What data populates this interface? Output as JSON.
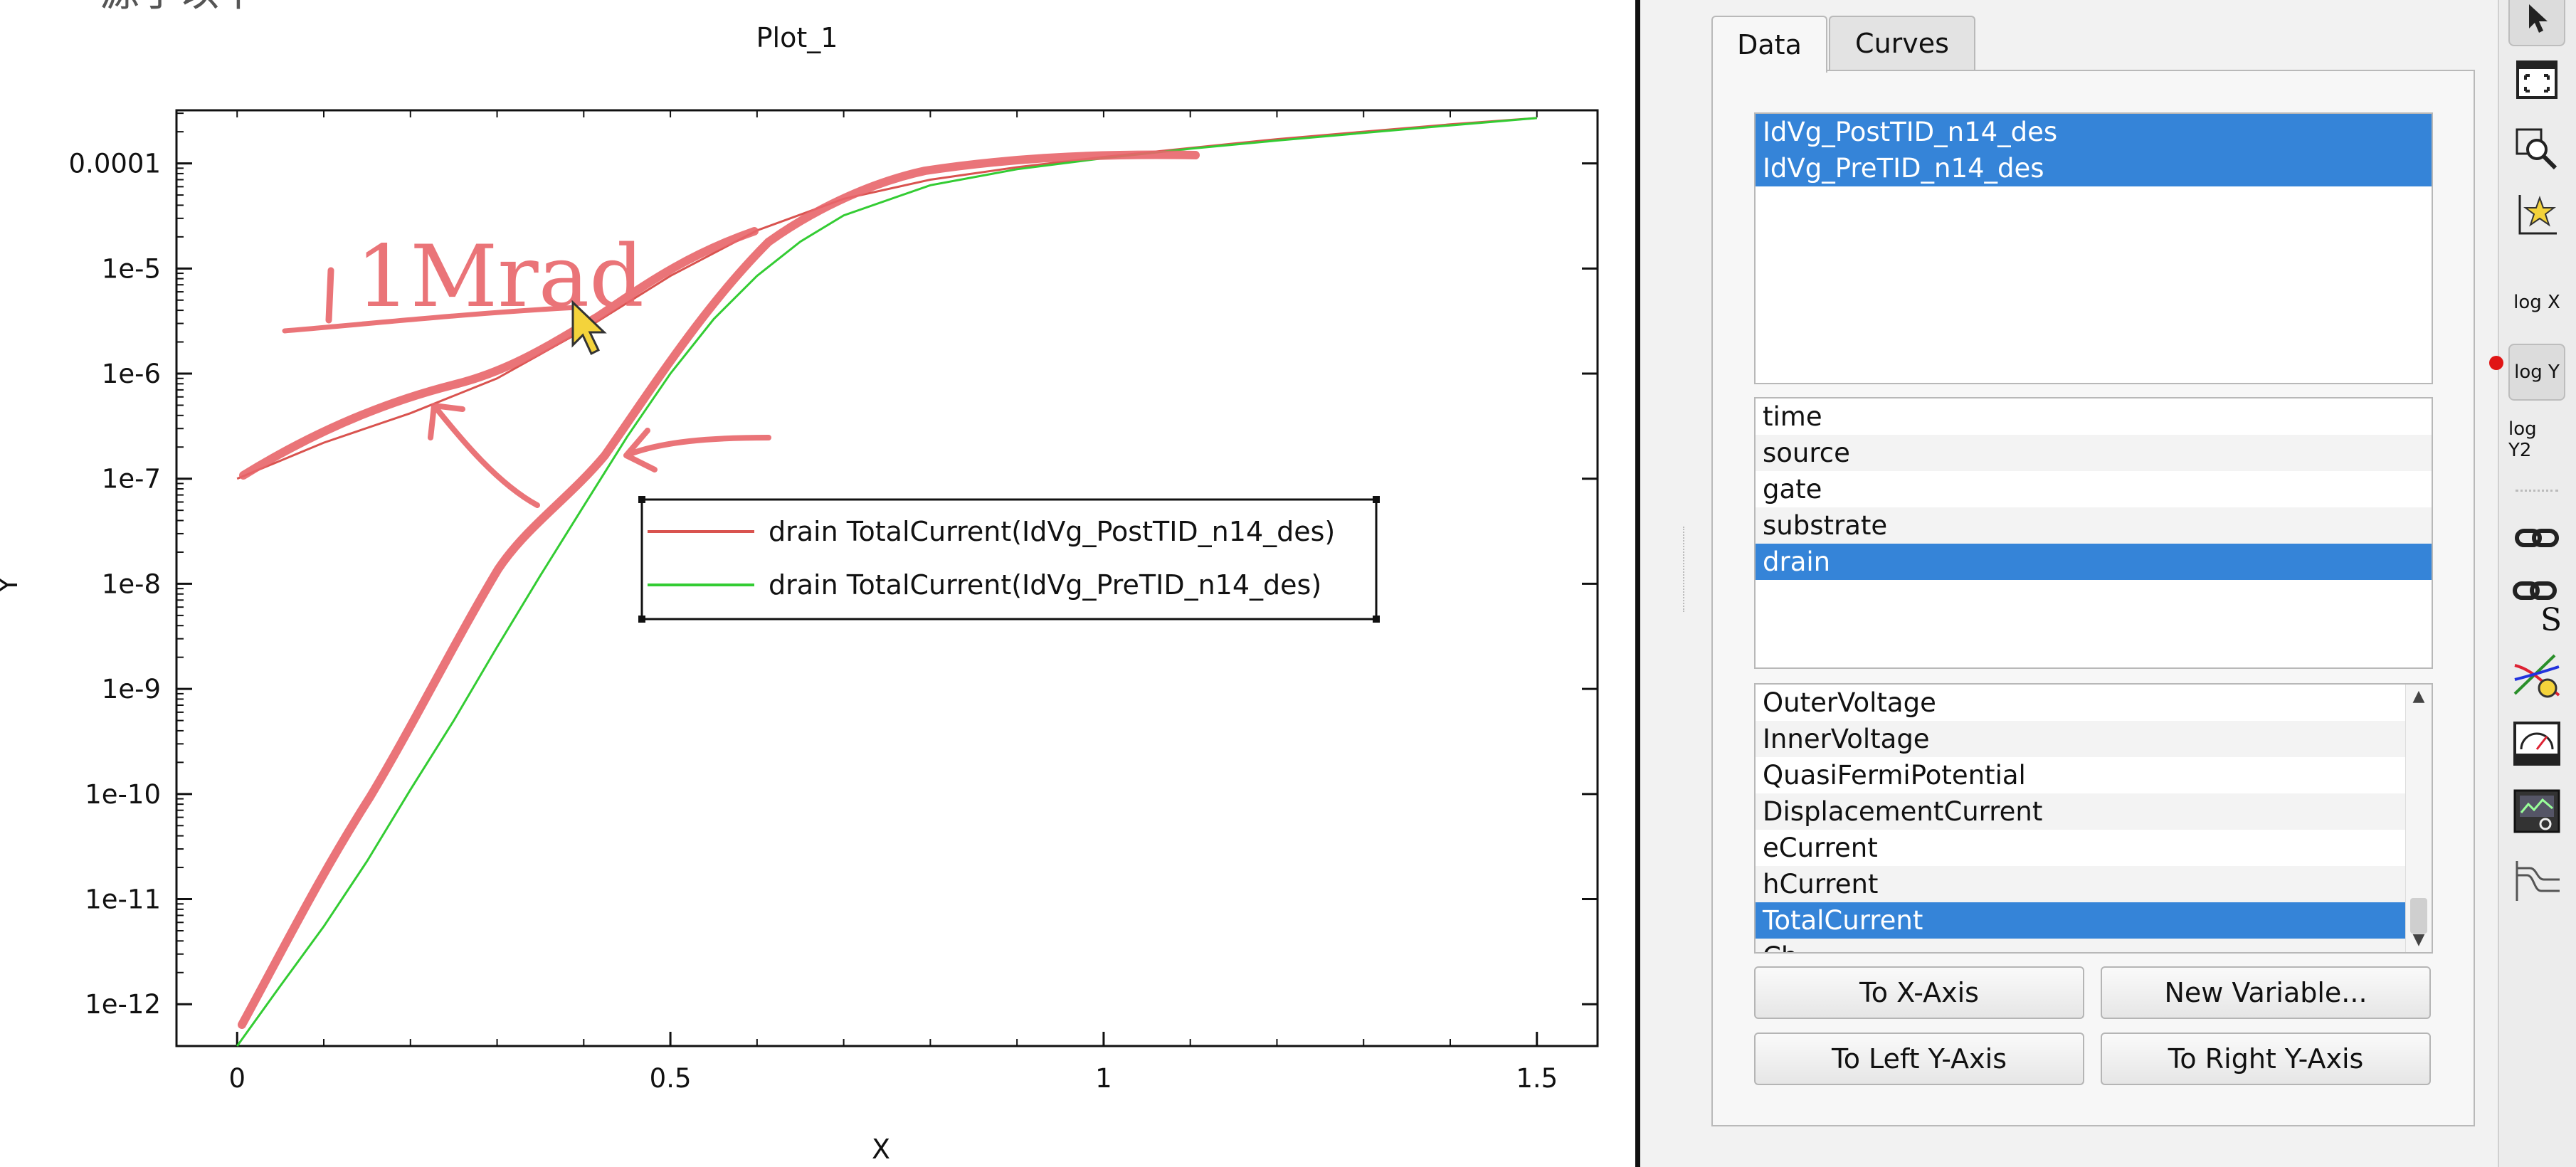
{
  "plot": {
    "title": "Plot_1",
    "xlabel": "X",
    "ylabel": "Y",
    "handwritten_note": "1Mrad",
    "top_text_fragment": "源于以下"
  },
  "chart_data": {
    "type": "line",
    "title": "Plot_1",
    "xlabel": "X",
    "ylabel": "Y",
    "yscale": "log",
    "xlim": [
      -0.07,
      1.57
    ],
    "ylim": [
      4e-13,
      0.00032
    ],
    "x_ticks": [
      "0",
      "0.5",
      "1",
      "1.5"
    ],
    "y_ticks": [
      "1e-12",
      "1e-11",
      "1e-10",
      "1e-9",
      "1e-8",
      "1e-7",
      "1e-6",
      "1e-5",
      "0.0001"
    ],
    "legend_position": "center",
    "grid": false,
    "series": [
      {
        "name": "drain TotalCurrent(IdVg_PostTID_n14_des)",
        "color": "#d9534f",
        "points": [
          [
            0.0,
            1e-07
          ],
          [
            0.1,
            2.2e-07
          ],
          [
            0.2,
            4.2e-07
          ],
          [
            0.3,
            9e-07
          ],
          [
            0.4,
            2.6e-06
          ],
          [
            0.5,
            8.5e-06
          ],
          [
            0.6,
            2.3e-05
          ],
          [
            0.7,
            4.6e-05
          ],
          [
            0.8,
            7e-05
          ],
          [
            0.9,
            9.2e-05
          ],
          [
            1.0,
            0.000115
          ],
          [
            1.1,
            0.00014
          ],
          [
            1.2,
            0.00017
          ],
          [
            1.3,
            0.0002
          ],
          [
            1.4,
            0.000235
          ],
          [
            1.5,
            0.00027
          ]
        ]
      },
      {
        "name": "drain TotalCurrent(IdVg_PreTID_n14_des)",
        "color": "#33cc33",
        "points": [
          [
            0.0,
            4e-13
          ],
          [
            0.05,
            1.5e-12
          ],
          [
            0.1,
            5.5e-12
          ],
          [
            0.15,
            2.3e-11
          ],
          [
            0.2,
            1.1e-10
          ],
          [
            0.25,
            5e-10
          ],
          [
            0.3,
            2.5e-09
          ],
          [
            0.35,
            1.2e-08
          ],
          [
            0.4,
            5.5e-08
          ],
          [
            0.45,
            2.5e-07
          ],
          [
            0.5,
            1e-06
          ],
          [
            0.55,
            3.3e-06
          ],
          [
            0.6,
            8.5e-06
          ],
          [
            0.65,
            1.8e-05
          ],
          [
            0.7,
            3.2e-05
          ],
          [
            0.8,
            6.2e-05
          ],
          [
            0.9,
            8.8e-05
          ],
          [
            1.0,
            0.000112
          ],
          [
            1.1,
            0.000138
          ],
          [
            1.2,
            0.000165
          ],
          [
            1.3,
            0.000195
          ],
          [
            1.4,
            0.00023
          ],
          [
            1.5,
            0.00027
          ]
        ]
      }
    ]
  },
  "panel": {
    "tabs": [
      {
        "label": "Data",
        "active": true
      },
      {
        "label": "Curves",
        "active": false
      }
    ],
    "datasets": [
      {
        "label": "IdVg_PostTID_n14_des",
        "selected": true
      },
      {
        "label": "IdVg_PreTID_n14_des",
        "selected": true
      }
    ],
    "groups": [
      {
        "label": "time",
        "selected": false
      },
      {
        "label": "source",
        "selected": false
      },
      {
        "label": "gate",
        "selected": false
      },
      {
        "label": "substrate",
        "selected": false
      },
      {
        "label": "drain",
        "selected": true
      }
    ],
    "variables": [
      {
        "label": "OuterVoltage",
        "selected": false
      },
      {
        "label": "InnerVoltage",
        "selected": false
      },
      {
        "label": "QuasiFermiPotential",
        "selected": false
      },
      {
        "label": "DisplacementCurrent",
        "selected": false
      },
      {
        "label": "eCurrent",
        "selected": false
      },
      {
        "label": "hCurrent",
        "selected": false
      },
      {
        "label": "TotalCurrent",
        "selected": true
      },
      {
        "label": "Ch...",
        "selected": false
      }
    ],
    "buttons": {
      "to_x_axis": "To X-Axis",
      "new_variable": "New Variable...",
      "to_left_y_axis": "To Left Y-Axis",
      "to_right_y_axis": "To Right Y-Axis"
    }
  },
  "toolbar": {
    "icons": [
      "pointer-icon",
      "fit-view-icon",
      "zoom-icon",
      "axis-star-icon",
      "log-x-icon",
      "log-y-icon",
      "log-y2-icon",
      "link-icon",
      "link-s-icon",
      "curves-icon",
      "gauge-icon",
      "monitor-icon",
      "step-curve-icon"
    ],
    "log_x": "log X",
    "log_y": "log Y",
    "log_y2": "log Y2"
  },
  "colors": {
    "selection": "#3584d8",
    "post_tid_curve": "#d9534f",
    "pre_tid_curve": "#33cc33",
    "annotation": "#e8656a"
  }
}
